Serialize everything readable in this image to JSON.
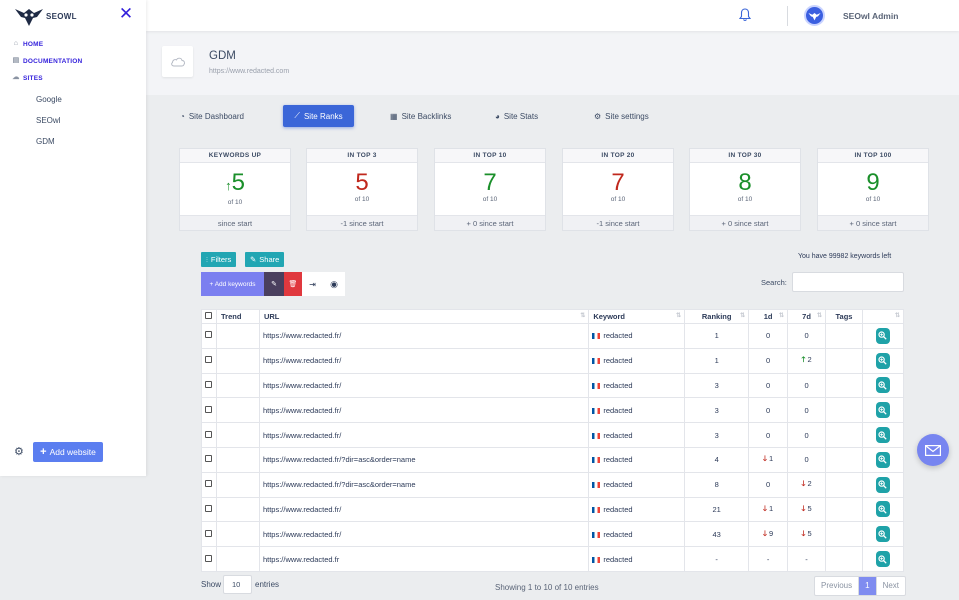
{
  "brand": {
    "name": "SEOWL"
  },
  "sidebar": {
    "nav": [
      {
        "label": "HOME",
        "icon": "home-icon"
      },
      {
        "label": "DOCUMENTATION",
        "icon": "document-icon"
      },
      {
        "label": "SITES",
        "icon": "cloud-icon"
      }
    ],
    "sites": [
      "Google",
      "SEOwl",
      "GDM"
    ],
    "add_website": "Add website"
  },
  "header": {
    "user": "SEOwl Admin"
  },
  "site": {
    "title": "GDM",
    "url": "https://www.redacted.com"
  },
  "tabs": [
    {
      "label": "Site Dashboard",
      "icon": "dashboard-icon",
      "active": false
    },
    {
      "label": "Site Ranks",
      "icon": "chart-icon",
      "active": true
    },
    {
      "label": "Site Backlinks",
      "icon": "table-icon",
      "active": false
    },
    {
      "label": "Site Stats",
      "icon": "pie-icon",
      "active": false
    },
    {
      "label": "Site settings",
      "icon": "gear-icon",
      "active": false
    }
  ],
  "cards": [
    {
      "title": "KEYWORDS UP",
      "value": "5",
      "of": "of 10",
      "footer": "since start",
      "color": "#1a8f2a",
      "arrow": "↑"
    },
    {
      "title": "IN TOP 3",
      "value": "5",
      "of": "of 10",
      "footer": "-1 since start",
      "color": "#c0281d",
      "arrow": ""
    },
    {
      "title": "IN TOP 10",
      "value": "7",
      "of": "of 10",
      "footer": "+ 0 since start",
      "color": "#1a8f2a",
      "arrow": ""
    },
    {
      "title": "IN TOP 20",
      "value": "7",
      "of": "of 10",
      "footer": "-1 since start",
      "color": "#c0281d",
      "arrow": ""
    },
    {
      "title": "IN TOP 30",
      "value": "8",
      "of": "of 10",
      "footer": "+ 0 since start",
      "color": "#1a8f2a",
      "arrow": ""
    },
    {
      "title": "IN TOP 100",
      "value": "9",
      "of": "of 10",
      "footer": "+ 0 since start",
      "color": "#1a8f2a",
      "arrow": ""
    }
  ],
  "toolbar": {
    "filters": "Filters",
    "share": "Share",
    "add_keywords": "+ Add keywords",
    "keywords_left": "You have 99982 keywords left",
    "search_label": "Search:"
  },
  "table": {
    "headers": [
      "Trend",
      "URL",
      "Keyword",
      "Ranking",
      "1d",
      "7d",
      "Tags"
    ],
    "rows": [
      {
        "url": "https://www.redacted.fr/",
        "keyword": "redacted",
        "ranking": "1",
        "d1": "0",
        "d1dir": "",
        "d7": "0",
        "d7dir": ""
      },
      {
        "url": "https://www.redacted.fr/",
        "keyword": "redacted",
        "ranking": "1",
        "d1": "0",
        "d1dir": "",
        "d7": "2",
        "d7dir": "up"
      },
      {
        "url": "https://www.redacted.fr/",
        "keyword": "redacted",
        "ranking": "3",
        "d1": "0",
        "d1dir": "",
        "d7": "0",
        "d7dir": ""
      },
      {
        "url": "https://www.redacted.fr/",
        "keyword": "redacted",
        "ranking": "3",
        "d1": "0",
        "d1dir": "",
        "d7": "0",
        "d7dir": ""
      },
      {
        "url": "https://www.redacted.fr/",
        "keyword": "redacted",
        "ranking": "3",
        "d1": "0",
        "d1dir": "",
        "d7": "0",
        "d7dir": ""
      },
      {
        "url": "https://www.redacted.fr/?dir=asc&order=name",
        "keyword": "redacted",
        "ranking": "4",
        "d1": "1",
        "d1dir": "down",
        "d7": "0",
        "d7dir": ""
      },
      {
        "url": "https://www.redacted.fr/?dir=asc&order=name",
        "keyword": "redacted",
        "ranking": "8",
        "d1": "0",
        "d1dir": "",
        "d7": "2",
        "d7dir": "down"
      },
      {
        "url": "https://www.redacted.fr/",
        "keyword": "redacted",
        "ranking": "21",
        "d1": "1",
        "d1dir": "down",
        "d7": "5",
        "d7dir": "down"
      },
      {
        "url": "https://www.redacted.fr/",
        "keyword": "redacted",
        "ranking": "43",
        "d1": "9",
        "d1dir": "down",
        "d7": "5",
        "d7dir": "down"
      },
      {
        "url": "https://www.redacted.fr",
        "keyword": "redacted",
        "ranking": "-",
        "d1": "-",
        "d1dir": "",
        "d7": "-",
        "d7dir": ""
      }
    ]
  },
  "footer": {
    "show": "Show",
    "page_size": "10",
    "entries": "entries",
    "showing": "Showing 1 to 10 of 10 entries",
    "previous": "Previous",
    "page": "1",
    "next": "Next"
  }
}
